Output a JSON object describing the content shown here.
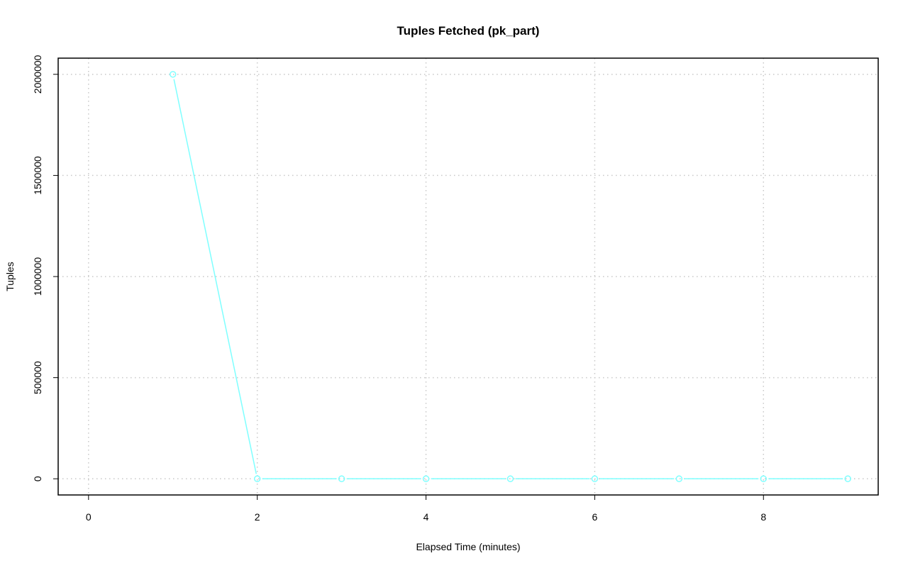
{
  "chart_data": {
    "type": "line",
    "title": "Tuples Fetched (pk_part)",
    "xlabel": "Elapsed Time (minutes)",
    "ylabel": "Tuples",
    "xlim": [
      0,
      9
    ],
    "ylim": [
      0,
      2000000
    ],
    "xticks": [
      0,
      2,
      4,
      6,
      8
    ],
    "yticks": [
      0,
      500000,
      1000000,
      1500000,
      2000000
    ],
    "xtick_labels": [
      "0",
      "2",
      "4",
      "6",
      "8"
    ],
    "ytick_labels": [
      "0",
      "500000",
      "1000000",
      "1500000",
      "2000000"
    ],
    "grid": true,
    "series": [
      {
        "color": "#7fffff",
        "x": [
          1,
          2,
          3,
          4,
          5,
          6,
          7,
          8,
          9
        ],
        "y": [
          2000000,
          0,
          0,
          0,
          0,
          0,
          0,
          0,
          0
        ]
      }
    ]
  }
}
